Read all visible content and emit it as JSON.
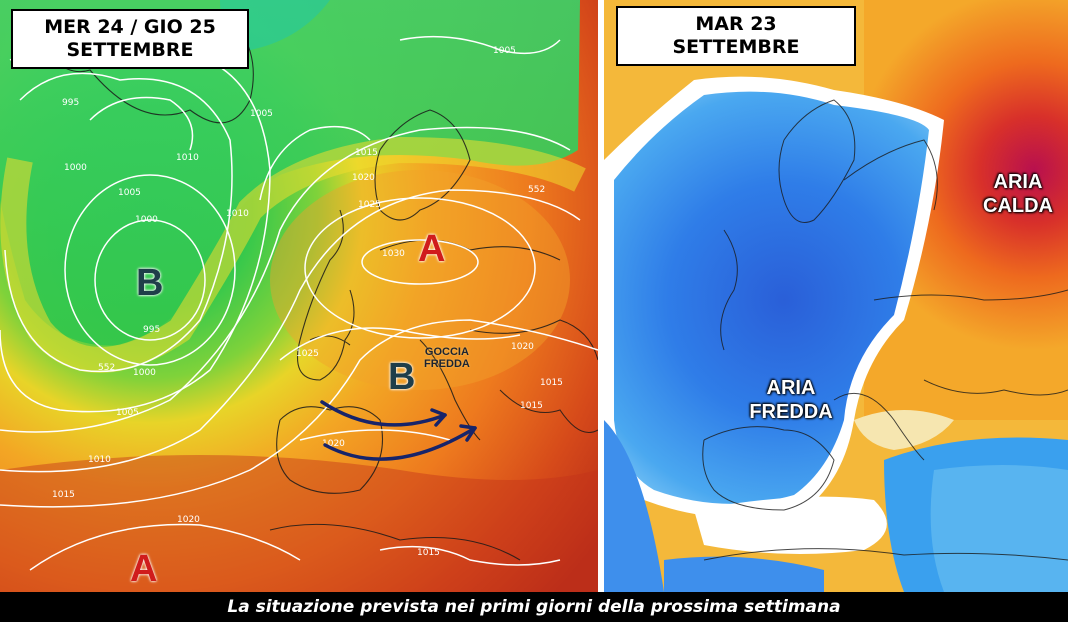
{
  "left_map": {
    "title_line1": "MER 24 / GIO 25",
    "title_line2": "SETTEMBRE",
    "pressure_centers": {
      "low_atlantic": "B",
      "low_goccia": "B",
      "high_central_europe": "A",
      "high_azores": "A"
    },
    "goccia_line1": "GOCCIA",
    "goccia_line2": "FREDDA",
    "isobar_labels": [
      "995",
      "1000",
      "1005",
      "1010",
      "1015",
      "1020",
      "1025",
      "1030",
      "552"
    ],
    "colors": {
      "low_green": "#2ec84a",
      "high_orange": "#f28a1c",
      "south_red": "#c8321a",
      "arrow": "#1a2a6e"
    }
  },
  "right_map": {
    "title_line1": "MAR 23",
    "title_line2": "SETTEMBRE",
    "warm_label_line1": "ARIA",
    "warm_label_line2": "CALDA",
    "cold_label_line1": "ARIA",
    "cold_label_line2": "FREDDA",
    "colors": {
      "cold_blue": "#2f7de8",
      "warm_orange": "#f4a82a",
      "hot_magenta": "#b8104e"
    }
  },
  "caption": "La situazione prevista nei primi giorni della prossima settimana"
}
